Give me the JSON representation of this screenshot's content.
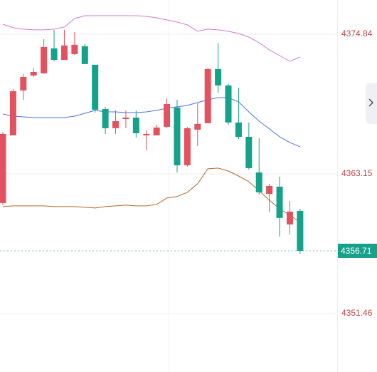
{
  "chart_data": {
    "type": "candlestick",
    "ylim": [
      4346.57,
      4377.7
    ],
    "yticks": [
      4351.46,
      4363.15,
      4374.84
    ],
    "grid": true,
    "up_color": "#e5525f",
    "down_color": "#15a28a",
    "open": [
      4360.71,
      4366.37,
      4370.13,
      4371.38,
      4371.56,
      4373.65,
      4372.69,
      4373.17,
      4373.83,
      4372.28,
      4368.58,
      4366.97,
      4367.74,
      4367.86,
      4366.37,
      4366.37,
      4367.09,
      4368.7,
      4363.87,
      4366.85,
      4367.39,
      4371.92,
      4370.55,
      4367.45,
      4366.25,
      4363.27,
      4361.48,
      4362.08,
      4358.92,
      4360.05
    ],
    "high": [
      4366.67,
      4370.25,
      4371.5,
      4371.98,
      4374.42,
      4375.2,
      4375.2,
      4375.02,
      4374.0,
      4372.28,
      4368.76,
      4368.46,
      4368.46,
      4368.46,
      4366.79,
      4367.27,
      4369.47,
      4369.35,
      4367.09,
      4369.06,
      4372.04,
      4374.12,
      4370.67,
      4370.37,
      4367.45,
      4366.13,
      4362.32,
      4362.91,
      4360.89,
      4360.23
    ],
    "low": [
      4360.53,
      4366.37,
      4369.35,
      4371.26,
      4371.56,
      4372.57,
      4372.69,
      4373.11,
      4372.34,
      4368.28,
      4366.49,
      4366.49,
      4366.97,
      4366.19,
      4365.12,
      4366.37,
      4366.97,
      4363.27,
      4363.75,
      4365.48,
      4367.39,
      4369.95,
      4367.27,
      4366.07,
      4363.51,
      4361.42,
      4359.93,
      4357.91,
      4358.08,
      4356.47
    ],
    "close": [
      4366.49,
      4370.07,
      4371.26,
      4371.68,
      4373.77,
      4372.69,
      4373.89,
      4373.95,
      4372.34,
      4368.52,
      4366.97,
      4367.56,
      4367.86,
      4366.55,
      4366.49,
      4367.03,
      4369.0,
      4363.87,
      4366.97,
      4367.33,
      4371.92,
      4370.55,
      4367.45,
      4366.25,
      4363.63,
      4361.61,
      4362.14,
      4359.46,
      4359.99,
      4356.71
    ],
    "bands": [
      {
        "color": "#d27bd6",
        "values": [
          4375.67,
          4375.38,
          4375.26,
          4375.2,
          4375.2,
          4375.26,
          4375.44,
          4376.15,
          4376.39,
          4376.39,
          4376.39,
          4376.39,
          4376.39,
          4376.39,
          4376.33,
          4376.21,
          4376.03,
          4375.85,
          4375.62,
          4375.08,
          4375.26,
          4375.2,
          4375.08,
          4374.9,
          4374.6,
          4374.12,
          4373.53,
          4373.05,
          4372.57,
          4372.93
        ]
      },
      {
        "color": "#4b74e6",
        "values": [
          4368.16,
          4367.98,
          4367.92,
          4367.86,
          4367.86,
          4367.86,
          4367.86,
          4367.98,
          4368.22,
          4368.46,
          4368.34,
          4368.34,
          4368.28,
          4368.28,
          4368.34,
          4368.46,
          4368.64,
          4368.76,
          4368.88,
          4369.12,
          4369.35,
          4369.53,
          4369.53,
          4369.18,
          4368.34,
          4367.56,
          4366.91,
          4366.25,
          4365.78,
          4365.42
        ]
      },
      {
        "color": "#b8692a",
        "values": [
          4360.41,
          4360.47,
          4360.47,
          4360.47,
          4360.47,
          4360.41,
          4360.41,
          4360.41,
          4360.35,
          4360.29,
          4360.41,
          4360.47,
          4360.53,
          4360.47,
          4360.47,
          4360.59,
          4361.13,
          4361.25,
          4361.61,
          4362.32,
          4363.57,
          4363.63,
          4363.39,
          4362.97,
          4362.5,
          4361.73,
          4360.95,
          4360.23,
          4359.69,
          4359.1
        ]
      }
    ],
    "last_price": 4356.71,
    "last_price_color": "#15a28a",
    "tick_color": "#c0484a"
  }
}
